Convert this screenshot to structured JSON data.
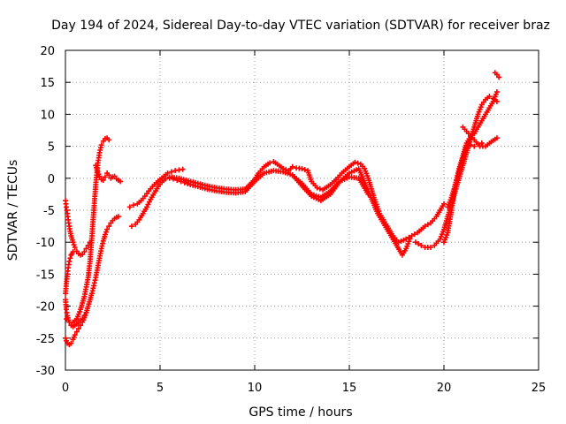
{
  "chart_data": {
    "type": "scatter",
    "title": "Day 194 of 2024, Sidereal Day-to-day VTEC variation (SDTVAR) for receiver braz",
    "xlabel": "GPS time / hours",
    "ylabel": "SDTVAR / TECUs",
    "xlim": [
      0,
      25
    ],
    "ylim": [
      -30,
      20
    ],
    "xticks": [
      0,
      5,
      10,
      15,
      20,
      25
    ],
    "yticks": [
      -30,
      -25,
      -20,
      -15,
      -10,
      -5,
      0,
      5,
      10,
      15,
      20
    ],
    "grid": true,
    "marker": "+",
    "color": "#ff0000",
    "series": [
      {
        "x": [
          0.0,
          0.05,
          0.1,
          0.15,
          0.2,
          0.25,
          0.3,
          0.4,
          0.5,
          0.6,
          0.7,
          0.8,
          0.9,
          1.0,
          1.1,
          1.2,
          1.3
        ],
        "y": [
          -3.5,
          -4.5,
          -5.5,
          -6.5,
          -7.5,
          -8.3,
          -9.0,
          -10.0,
          -10.8,
          -11.4,
          -11.8,
          -12.0,
          -11.9,
          -11.5,
          -11.0,
          -10.5,
          -10.0
        ]
      },
      {
        "x": [
          0.0,
          0.05,
          0.1,
          0.15,
          0.2,
          0.25,
          0.3,
          0.35,
          0.4
        ],
        "y": [
          -18.0,
          -16.5,
          -15.0,
          -14.0,
          -13.0,
          -12.5,
          -12.0,
          -11.8,
          -11.5
        ]
      },
      {
        "x": [
          0.05,
          0.2,
          0.4,
          0.6,
          0.8,
          1.0,
          1.2,
          1.3,
          1.4,
          1.5,
          1.6,
          1.7,
          1.8,
          1.9,
          2.0,
          2.1,
          2.2,
          2.3
        ],
        "y": [
          -22.0,
          -22.5,
          -22.5,
          -22.0,
          -20.5,
          -18.5,
          -15.5,
          -13.0,
          -9.0,
          -5.0,
          -1.0,
          2.0,
          4.0,
          5.2,
          5.8,
          6.2,
          6.3,
          6.0
        ]
      },
      {
        "x": [
          0.0,
          0.05,
          0.1,
          0.2,
          0.3,
          0.4,
          0.5,
          0.6,
          0.7,
          0.8,
          0.9,
          1.0,
          1.1
        ],
        "y": [
          -19.0,
          -20.5,
          -21.5,
          -22.5,
          -23.0,
          -23.2,
          -23.0,
          -22.8,
          -22.5,
          -22.2,
          -22.0,
          -21.5,
          -21.0
        ]
      },
      {
        "x": [
          0.0,
          0.1,
          0.2,
          0.3,
          0.4,
          0.5,
          0.6,
          0.7,
          0.8,
          0.9,
          1.0,
          1.1,
          1.2,
          1.3,
          1.4,
          1.5,
          1.6,
          1.7,
          1.8,
          1.9,
          2.0,
          2.1,
          2.2,
          2.3,
          2.4,
          2.5,
          2.6,
          2.7,
          2.8
        ],
        "y": [
          -25.0,
          -25.8,
          -26.0,
          -25.8,
          -25.2,
          -24.5,
          -24.0,
          -23.5,
          -23.0,
          -22.5,
          -21.8,
          -21.0,
          -20.0,
          -19.0,
          -18.0,
          -16.8,
          -15.5,
          -14.0,
          -12.5,
          -11.0,
          -9.8,
          -8.8,
          -8.0,
          -7.5,
          -7.0,
          -6.6,
          -6.3,
          -6.1,
          -6.0
        ]
      },
      {
        "x": [
          1.6,
          1.7,
          1.8,
          1.9,
          2.0,
          2.1,
          2.2,
          2.3,
          2.4,
          2.5,
          2.6,
          2.7,
          2.8,
          2.9
        ],
        "y": [
          2.0,
          1.0,
          0.3,
          -0.2,
          -0.3,
          0.2,
          0.8,
          0.5,
          0.0,
          0.2,
          0.3,
          -0.1,
          -0.3,
          -0.5
        ]
      },
      {
        "x": [
          3.4,
          3.6,
          3.8,
          4.0,
          4.2,
          4.4,
          4.6,
          4.8,
          5.0,
          5.2,
          5.4,
          5.6,
          5.8,
          6.0,
          6.2
        ],
        "y": [
          -4.5,
          -4.2,
          -4.0,
          -3.5,
          -2.8,
          -2.0,
          -1.3,
          -0.7,
          -0.2,
          0.3,
          0.8,
          1.0,
          1.2,
          1.3,
          1.4
        ]
      },
      {
        "x": [
          3.5,
          3.7,
          3.9,
          4.1,
          4.3,
          4.5,
          4.7,
          4.9,
          5.1,
          5.3,
          5.5,
          5.7,
          5.9,
          6.1,
          6.3,
          6.6,
          7.0,
          7.5,
          8.0,
          8.5,
          9.0,
          9.5,
          10.0,
          10.5,
          11.0,
          11.5,
          12.0,
          12.5,
          13.0,
          13.5,
          14.0,
          14.5,
          15.0,
          15.5,
          16.0,
          16.5,
          17.0,
          17.5,
          17.8,
          18.0,
          18.2
        ],
        "y": [
          -7.5,
          -7.2,
          -6.5,
          -5.5,
          -4.5,
          -3.3,
          -2.3,
          -1.3,
          -0.6,
          -0.1,
          0.0,
          -0.1,
          -0.3,
          -0.5,
          -0.7,
          -1.0,
          -1.3,
          -1.7,
          -2.0,
          -2.2,
          -2.3,
          -2.1,
          -0.5,
          0.8,
          1.2,
          1.0,
          0.5,
          -0.8,
          -2.5,
          -3.0,
          -2.0,
          -0.5,
          0.8,
          1.5,
          -2.0,
          -5.5,
          -8.0,
          -10.5,
          -12.0,
          -11.0,
          -9.5
        ]
      },
      {
        "x": [
          5.5,
          6.0,
          6.5,
          7.0,
          7.5,
          8.0,
          8.5,
          9.0,
          9.5,
          10.0,
          10.2,
          10.5,
          10.8,
          11.0,
          11.2,
          11.5,
          11.8,
          12.0,
          12.2,
          12.5,
          12.8,
          13.0,
          13.3,
          13.6,
          14.0,
          14.3,
          14.6,
          15.0,
          15.3,
          15.6,
          15.8,
          16.0,
          16.3,
          16.6,
          17.0,
          17.3,
          17.6,
          18.0,
          18.3,
          18.6,
          19.0,
          19.3,
          19.6,
          20.0
        ],
        "y": [
          0.2,
          0.0,
          -0.4,
          -0.8,
          -1.2,
          -1.5,
          -1.7,
          -1.8,
          -1.7,
          -0.2,
          0.8,
          1.8,
          2.4,
          2.6,
          2.2,
          1.5,
          1.2,
          1.8,
          1.6,
          1.5,
          1.2,
          -0.5,
          -1.5,
          -1.8,
          -1.0,
          -0.2,
          0.8,
          1.8,
          2.5,
          2.2,
          1.5,
          0.0,
          -3.0,
          -5.5,
          -7.5,
          -9.0,
          -10.0,
          -9.5,
          -9.0,
          -8.5,
          -7.5,
          -7.0,
          -6.0,
          -4.0
        ]
      },
      {
        "x": [
          12.0,
          12.5,
          13.0,
          13.5,
          14.0,
          14.5,
          15.0,
          15.5,
          16.0
        ],
        "y": [
          0.5,
          -1.2,
          -2.8,
          -3.5,
          -2.5,
          -0.5,
          0.2,
          0.0,
          -2.5
        ]
      },
      {
        "x": [
          18.5,
          18.8,
          19.0,
          19.3,
          19.5,
          19.8,
          20.0,
          20.2,
          20.4,
          20.6,
          20.8,
          21.0,
          21.2,
          21.4,
          21.6,
          21.8,
          22.0,
          22.2,
          22.4,
          22.6,
          22.8
        ],
        "y": [
          -10.0,
          -10.5,
          -10.8,
          -10.8,
          -10.5,
          -9.5,
          -8.0,
          -6.0,
          -4.0,
          -2.0,
          0.0,
          2.0,
          4.0,
          6.0,
          8.0,
          10.0,
          11.5,
          12.3,
          12.8,
          12.5,
          12.0
        ]
      },
      {
        "x": [
          20.0,
          20.2,
          20.4,
          20.6,
          20.8,
          21.0,
          21.2,
          21.4,
          21.6,
          21.8,
          22.0,
          22.2,
          22.4,
          22.6,
          22.8
        ],
        "y": [
          -10.0,
          -8.5,
          -5.0,
          -1.0,
          1.5,
          3.5,
          5.5,
          6.5,
          7.0,
          8.0,
          9.0,
          10.0,
          11.0,
          12.0,
          13.5
        ]
      },
      {
        "x": [
          20.2,
          20.4,
          20.6,
          20.8,
          21.0,
          21.2
        ],
        "y": [
          -4.5,
          -3.0,
          -1.0,
          1.0,
          3.0,
          5.0
        ]
      },
      {
        "x": [
          21.0,
          21.3,
          21.6,
          21.9,
          22.2,
          22.5,
          22.8
        ],
        "y": [
          8.0,
          7.0,
          6.0,
          5.0,
          5.0,
          5.7,
          6.3
        ]
      },
      {
        "x": [
          21.2,
          21.4,
          21.6,
          21.8,
          22.0
        ],
        "y": [
          5.0,
          5.2,
          5.0,
          5.3,
          5.5
        ]
      },
      {
        "x": [
          22.7,
          22.8,
          22.9
        ],
        "y": [
          16.5,
          16.2,
          15.8
        ]
      }
    ]
  }
}
